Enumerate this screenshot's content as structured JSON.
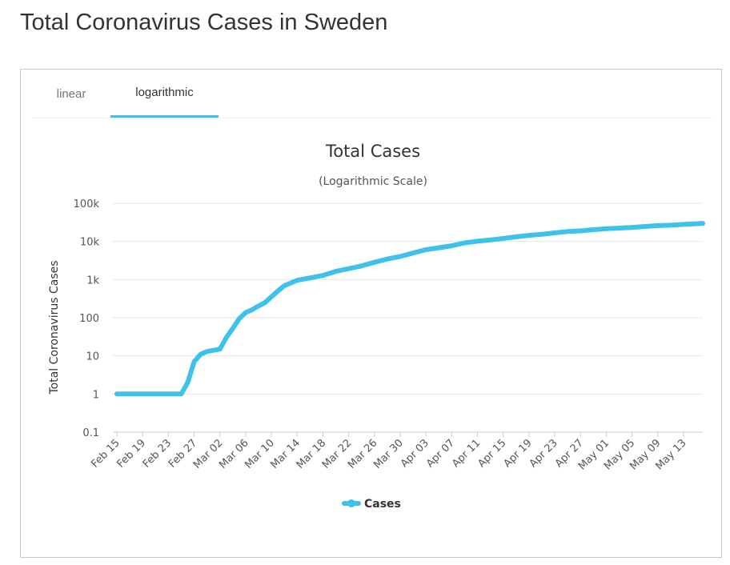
{
  "page": {
    "title": "Total Coronavirus Cases in Sweden"
  },
  "tabs": [
    {
      "label": "linear",
      "active": false
    },
    {
      "label": "logarithmic",
      "active": true
    }
  ],
  "colors": {
    "series": "#3ec1ea",
    "tab_active": "#3ec1ea",
    "grid": "#e6e6e6",
    "text": "#333333"
  },
  "chart_data": {
    "type": "line",
    "title": "Total Cases",
    "subtitle": "(Logarithmic Scale)",
    "ylabel": "Total Coronavirus Cases",
    "xlabel": "",
    "yscale": "log",
    "ylim": [
      0.1,
      100000
    ],
    "y_ticks": [
      {
        "value": 0.1,
        "label": "0.1"
      },
      {
        "value": 1,
        "label": "1"
      },
      {
        "value": 10,
        "label": "10"
      },
      {
        "value": 100,
        "label": "100"
      },
      {
        "value": 1000,
        "label": "1k"
      },
      {
        "value": 10000,
        "label": "10k"
      },
      {
        "value": 100000,
        "label": "100k"
      }
    ],
    "x_ticks": [
      "Feb 15",
      "Feb 19",
      "Feb 23",
      "Feb 27",
      "Mar 02",
      "Mar 06",
      "Mar 10",
      "Mar 14",
      "Mar 18",
      "Mar 22",
      "Mar 26",
      "Mar 30",
      "Apr 03",
      "Apr 07",
      "Apr 11",
      "Apr 15",
      "Apr 19",
      "Apr 23",
      "Apr 27",
      "May 01",
      "May 05",
      "May 09",
      "May 13"
    ],
    "grid": true,
    "legend": {
      "position": "bottom"
    },
    "series": [
      {
        "name": "Cases",
        "points": [
          [
            "Feb 15",
            1
          ],
          [
            "Feb 19",
            1
          ],
          [
            "Feb 23",
            1
          ],
          [
            "Feb 25",
            1
          ],
          [
            "Feb 26",
            2
          ],
          [
            "Feb 27",
            7
          ],
          [
            "Feb 28",
            11
          ],
          [
            "Feb 29",
            13
          ],
          [
            "Mar 01",
            14
          ],
          [
            "Mar 02",
            15
          ],
          [
            "Mar 03",
            30
          ],
          [
            "Mar 04",
            52
          ],
          [
            "Mar 05",
            94
          ],
          [
            "Mar 06",
            137
          ],
          [
            "Mar 07",
            161
          ],
          [
            "Mar 08",
            203
          ],
          [
            "Mar 09",
            248
          ],
          [
            "Mar 10",
            355
          ],
          [
            "Mar 11",
            500
          ],
          [
            "Mar 12",
            687
          ],
          [
            "Mar 13",
            814
          ],
          [
            "Mar 14",
            961
          ],
          [
            "Mar 16",
            1103
          ],
          [
            "Mar 18",
            1279
          ],
          [
            "Mar 20",
            1639
          ],
          [
            "Mar 22",
            1934
          ],
          [
            "Mar 24",
            2272
          ],
          [
            "Mar 26",
            2840
          ],
          [
            "Mar 28",
            3447
          ],
          [
            "Mar 30",
            4028
          ],
          [
            "Apr 01",
            4947
          ],
          [
            "Apr 03",
            6078
          ],
          [
            "Apr 05",
            6830
          ],
          [
            "Apr 07",
            7693
          ],
          [
            "Apr 09",
            9141
          ],
          [
            "Apr 11",
            10151
          ],
          [
            "Apr 13",
            10948
          ],
          [
            "Apr 15",
            11927
          ],
          [
            "Apr 17",
            13216
          ],
          [
            "Apr 19",
            14385
          ],
          [
            "Apr 21",
            15322
          ],
          [
            "Apr 23",
            16755
          ],
          [
            "Apr 25",
            18177
          ],
          [
            "Apr 27",
            18926
          ],
          [
            "Apr 29",
            20302
          ],
          [
            "May 01",
            21520
          ],
          [
            "May 03",
            22317
          ],
          [
            "May 05",
            23216
          ],
          [
            "May 07",
            24623
          ],
          [
            "May 09",
            25921
          ],
          [
            "May 11",
            26670
          ],
          [
            "May 13",
            27909
          ],
          [
            "May 16",
            29677
          ]
        ]
      }
    ]
  }
}
